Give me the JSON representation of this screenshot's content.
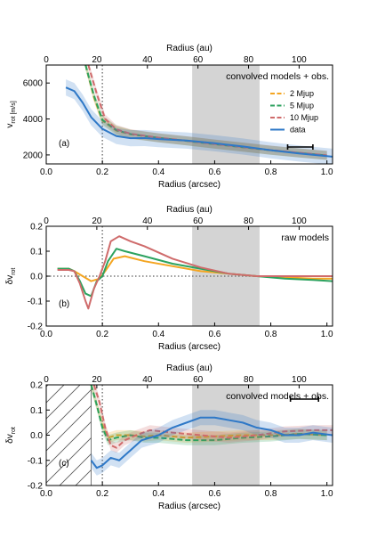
{
  "colors": {
    "m2": "#f4a521",
    "m5": "#2ca25f",
    "m10": "#cf6b6b",
    "data": "#2e78c7",
    "shade": "#d4d4d4",
    "dotted": "#777777"
  },
  "labels": {
    "top_axis_title": "Radius (au)",
    "bottom_axis_title": "Radius (arcsec)",
    "vrot_label": "v_rot [m/s]",
    "dv_label": "δv_rot"
  },
  "legend": [
    {
      "key": "m2",
      "label": "2 Mjup",
      "dashed": true
    },
    {
      "key": "m5",
      "label": "5 Mjup",
      "dashed": true
    },
    {
      "key": "m10",
      "label": "10 Mjup",
      "dashed": true
    },
    {
      "key": "data",
      "label": "data",
      "dashed": false
    }
  ],
  "panels": [
    {
      "id": "a",
      "tag": "(a)",
      "title": "convolved models + obs.",
      "ylabel": "v_rot [m/s]",
      "ylim": [
        1500,
        7000
      ],
      "yticks": [
        2000,
        4000,
        6000
      ]
    },
    {
      "id": "b",
      "tag": "(b)",
      "title": "raw models",
      "ylabel": "δv_rot",
      "ylim": [
        -0.2,
        0.2
      ],
      "yticks": [
        -0.2,
        -0.1,
        0.0,
        0.1,
        0.2
      ]
    },
    {
      "id": "c",
      "tag": "(c)",
      "title": "convolved models + obs.",
      "ylabel": "δv_rot",
      "ylim": [
        -0.2,
        0.2
      ],
      "yticks": [
        -0.2,
        -0.1,
        0.0,
        0.1,
        0.2
      ]
    }
  ],
  "chart_data": [
    {
      "type": "line",
      "panel": "a",
      "title": "convolved models + obs.",
      "xlabel": "Radius (arcsec)",
      "ylabel": "v_rot [m/s]",
      "xlim": [
        0.0,
        1.02
      ],
      "ylim": [
        1500,
        7000
      ],
      "xticks": [
        0.0,
        0.2,
        0.4,
        0.6,
        0.8,
        1.0
      ],
      "xticks_top_au": [
        0,
        20,
        40,
        60,
        80,
        100
      ],
      "xtop_label": "Radius (au)",
      "shaded_x": [
        0.52,
        0.76
      ],
      "vline_x": 0.2,
      "series": [
        {
          "name": "2 Mjup",
          "x": [
            0.14,
            0.17,
            0.2,
            0.25,
            0.3,
            0.4,
            0.5,
            0.6,
            0.7,
            0.8,
            0.9,
            1.0
          ],
          "y": [
            7000,
            5200,
            3900,
            3350,
            3150,
            2950,
            2780,
            2600,
            2430,
            2260,
            2110,
            1970
          ]
        },
        {
          "name": "5 Mjup",
          "x": [
            0.14,
            0.17,
            0.2,
            0.25,
            0.3,
            0.4,
            0.5,
            0.6,
            0.7,
            0.8,
            0.9,
            1.0
          ],
          "y": [
            7000,
            5300,
            3950,
            3380,
            3160,
            2950,
            2780,
            2600,
            2430,
            2260,
            2110,
            1970
          ]
        },
        {
          "name": "10 Mjup",
          "x": [
            0.15,
            0.18,
            0.21,
            0.25,
            0.3,
            0.4,
            0.5,
            0.6,
            0.7,
            0.8,
            0.9,
            1.0
          ],
          "y": [
            7000,
            5400,
            4000,
            3420,
            3180,
            2960,
            2790,
            2610,
            2440,
            2270,
            2120,
            1980
          ]
        },
        {
          "name": "data",
          "x": [
            0.07,
            0.1,
            0.13,
            0.16,
            0.2,
            0.25,
            0.3,
            0.35,
            0.4,
            0.5,
            0.6,
            0.7,
            0.8,
            0.9,
            1.02
          ],
          "y": [
            5750,
            5550,
            4900,
            4100,
            3450,
            3050,
            2930,
            2940,
            2880,
            2800,
            2650,
            2470,
            2260,
            2080,
            1900
          ]
        }
      ]
    },
    {
      "type": "line",
      "panel": "b",
      "title": "raw models",
      "xlabel": "Radius (arcsec)",
      "ylabel": "δv_rot",
      "xlim": [
        0.0,
        1.02
      ],
      "ylim": [
        -0.2,
        0.2
      ],
      "xticks": [
        0.0,
        0.2,
        0.4,
        0.6,
        0.8,
        1.0
      ],
      "xticks_top_au": [
        0,
        20,
        40,
        60,
        80,
        100
      ],
      "xtop_label": "Radius (au)",
      "shaded_x": [
        0.52,
        0.76
      ],
      "vline_x": 0.2,
      "hline_y": 0.0,
      "series": [
        {
          "name": "2 Mjup",
          "x": [
            0.04,
            0.08,
            0.1,
            0.13,
            0.16,
            0.19,
            0.21,
            0.24,
            0.28,
            0.35,
            0.45,
            0.55,
            0.65,
            0.75,
            0.85,
            0.95,
            1.02
          ],
          "y": [
            0.03,
            0.03,
            0.02,
            0.0,
            -0.02,
            -0.01,
            0.02,
            0.07,
            0.08,
            0.06,
            0.04,
            0.02,
            0.01,
            0.0,
            -0.005,
            -0.01,
            -0.01
          ]
        },
        {
          "name": "5 Mjup",
          "x": [
            0.04,
            0.08,
            0.1,
            0.12,
            0.14,
            0.16,
            0.18,
            0.2,
            0.22,
            0.25,
            0.28,
            0.35,
            0.45,
            0.55,
            0.65,
            0.75,
            0.85,
            0.95,
            1.02
          ],
          "y": [
            0.03,
            0.03,
            0.02,
            -0.02,
            -0.07,
            -0.08,
            -0.02,
            0.0,
            0.06,
            0.11,
            0.1,
            0.08,
            0.05,
            0.03,
            0.01,
            0.0,
            -0.01,
            -0.015,
            -0.02
          ]
        },
        {
          "name": "10 Mjup",
          "x": [
            0.04,
            0.08,
            0.1,
            0.12,
            0.14,
            0.15,
            0.17,
            0.19,
            0.21,
            0.23,
            0.26,
            0.3,
            0.35,
            0.45,
            0.55,
            0.65,
            0.75,
            0.85,
            0.95,
            1.02
          ],
          "y": [
            0.025,
            0.025,
            0.02,
            -0.03,
            -0.1,
            -0.13,
            -0.05,
            0.0,
            0.06,
            0.14,
            0.16,
            0.14,
            0.12,
            0.07,
            0.035,
            0.01,
            0.0,
            0.0,
            0.0,
            0.0
          ]
        }
      ]
    },
    {
      "type": "line",
      "panel": "c",
      "title": "convolved models + obs.",
      "xlabel": "Radius (arcsec)",
      "ylabel": "δv_rot",
      "xlim": [
        0.0,
        1.02
      ],
      "ylim": [
        -0.2,
        0.2
      ],
      "xticks": [
        0.0,
        0.2,
        0.4,
        0.6,
        0.8,
        1.0
      ],
      "xticks_top_au": [
        0,
        20,
        40,
        60,
        80,
        100
      ],
      "xtop_label": "Radius (au)",
      "shaded_x": [
        0.52,
        0.76
      ],
      "hatched_x": [
        0.0,
        0.16
      ],
      "vline_x": 0.2,
      "series": [
        {
          "name": "2 Mjup",
          "x": [
            0.16,
            0.18,
            0.2,
            0.22,
            0.25,
            0.3,
            0.35,
            0.4,
            0.5,
            0.6,
            0.7,
            0.8,
            0.9,
            1.0
          ],
          "y": [
            0.2,
            0.12,
            0.04,
            -0.01,
            0.0,
            0.0,
            -0.005,
            0.0,
            -0.01,
            -0.005,
            0.0,
            0.0,
            0.005,
            0.0
          ]
        },
        {
          "name": "5 Mjup",
          "x": [
            0.16,
            0.18,
            0.2,
            0.22,
            0.25,
            0.3,
            0.35,
            0.4,
            0.5,
            0.6,
            0.7,
            0.8,
            0.9,
            1.0
          ],
          "y": [
            0.2,
            0.12,
            0.03,
            -0.02,
            -0.01,
            0.0,
            -0.01,
            -0.01,
            -0.02,
            -0.02,
            -0.01,
            -0.005,
            0.005,
            0.0
          ]
        },
        {
          "name": "10 Mjup",
          "x": [
            0.17,
            0.19,
            0.21,
            0.23,
            0.25,
            0.28,
            0.32,
            0.37,
            0.45,
            0.55,
            0.65,
            0.75,
            0.85,
            0.95,
            1.02
          ],
          "y": [
            0.2,
            0.13,
            0.03,
            -0.04,
            -0.05,
            -0.02,
            0.0,
            0.02,
            0.01,
            0.0,
            -0.01,
            0.0,
            0.015,
            0.02,
            0.02
          ]
        },
        {
          "name": "data",
          "x": [
            0.16,
            0.18,
            0.2,
            0.23,
            0.26,
            0.3,
            0.34,
            0.4,
            0.45,
            0.5,
            0.55,
            0.6,
            0.65,
            0.7,
            0.75,
            0.8,
            0.85,
            0.9,
            0.95,
            1.02
          ],
          "y": [
            -0.1,
            -0.13,
            -0.12,
            -0.09,
            -0.1,
            -0.06,
            -0.02,
            0.0,
            0.03,
            0.05,
            0.07,
            0.07,
            0.06,
            0.05,
            0.03,
            0.02,
            0.0,
            0.0,
            0.01,
            0.0
          ]
        }
      ]
    }
  ]
}
